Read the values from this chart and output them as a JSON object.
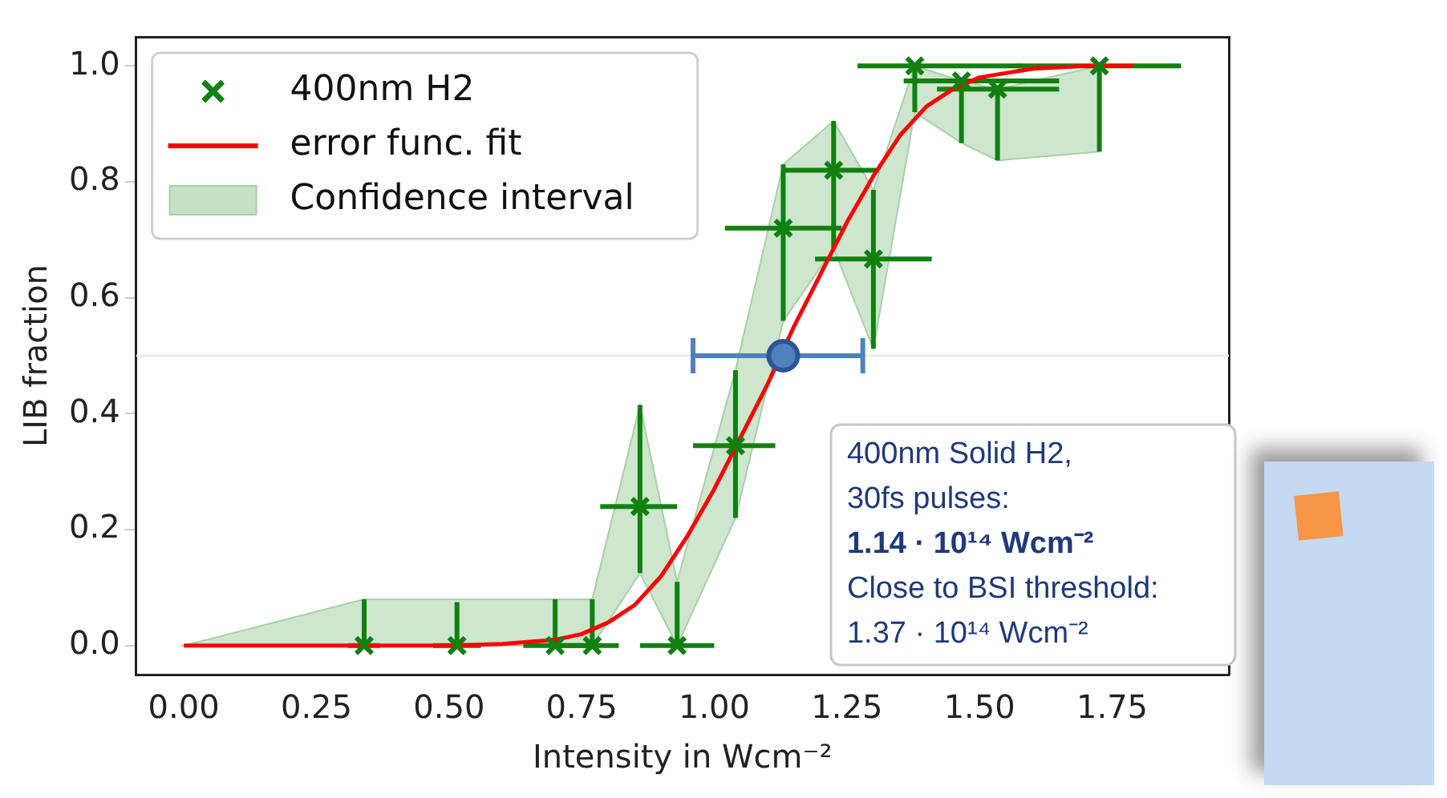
{
  "chart_data": {
    "type": "scatter",
    "xlabel": "Intensity in Wcm⁻²",
    "ylabel": "LIB fraction",
    "xlim": [
      -0.09,
      1.97
    ],
    "xticks": [
      {
        "value": 0,
        "label": "0.00"
      },
      0.25,
      {
        "value": 0.5,
        "label": "0.50"
      },
      0.75,
      {
        "value": 1,
        "label": "1.00"
      },
      1.25,
      {
        "value": 1.5,
        "label": "1.50"
      },
      1.75
    ],
    "ylim": [
      -0.05,
      1.05
    ],
    "yticks": [
      {
        "value": 0,
        "label": "0.0"
      },
      0.2,
      0.4,
      0.6,
      0.8,
      {
        "value": 1,
        "label": "1.0"
      }
    ],
    "grid": false,
    "legend": "top left",
    "ref_lines": [
      {
        "axis": "y",
        "value": 0.5,
        "label": null,
        "color": "#e8ecf2"
      }
    ],
    "annotations": [
      "400nm Solid H2,",
      "30fs pulses:",
      "1.14 · 10¹⁴ Wcm⁻²",
      "Close to BSI threshold:",
      "1.37 · 10¹⁴ Wcm⁻²"
    ],
    "series": [
      {
        "name": "Confidence interval",
        "type": "area",
        "color": "#c4e2c4",
        "x": [
          0,
          0.34,
          0.515,
          0.7,
          0.77,
          0.86,
          0.93,
          1.04,
          1.13,
          1.225,
          1.3,
          1.378,
          1.466,
          1.534,
          1.726
        ],
        "values": [
          null,
          null,
          null,
          null,
          null,
          null,
          null,
          null,
          null,
          null,
          null,
          null,
          null,
          null,
          null
        ],
        "lower": [
          0,
          0,
          0,
          0,
          0,
          0.125,
          0,
          0.22,
          0.56,
          0.685,
          0.512,
          0.92,
          0.867,
          0.837,
          0.852
        ],
        "upper": [
          0,
          0.08,
          0.08,
          0.08,
          0.08,
          0.415,
          0.11,
          0.475,
          0.83,
          0.905,
          0.786,
          1,
          0.974,
          0.96,
          1
        ]
      },
      {
        "name": "error func. fit",
        "type": "line",
        "color": "#ff0000",
        "marker": "none",
        "x": [
          0,
          0.5,
          0.6,
          0.7,
          0.75,
          0.8,
          0.85,
          0.9,
          0.95,
          1,
          1.05,
          1.1,
          1.15,
          1.2,
          1.25,
          1.3,
          1.35,
          1.4,
          1.45,
          1.5,
          1.6,
          1.7,
          1.79
        ],
        "values": [
          0,
          0,
          0.003,
          0.01,
          0.02,
          0.04,
          0.07,
          0.12,
          0.19,
          0.27,
          0.36,
          0.45,
          0.55,
          0.64,
          0.73,
          0.81,
          0.88,
          0.93,
          0.96,
          0.98,
          0.995,
          1,
          1
        ]
      },
      {
        "name": "400nm H2",
        "color": "#118011",
        "marker": "cross",
        "x": [
          0.34,
          0.515,
          0.7,
          0.77,
          0.86,
          0.93,
          1.04,
          1.13,
          1.225,
          1.3,
          1.378,
          1.466,
          1.534,
          1.726
        ],
        "values": [
          0,
          0,
          0,
          0,
          0.24,
          0,
          0.345,
          0.72,
          0.82,
          0.667,
          1,
          0.974,
          0.96,
          1
        ],
        "errors": [
          [
            0,
            0.08
          ],
          [
            0,
            0.075
          ],
          [
            0,
            0.08
          ],
          [
            0,
            0.08
          ],
          [
            0.125,
            0.415
          ],
          [
            0,
            0.11
          ],
          [
            0.22,
            0.475
          ],
          [
            0.56,
            0.83
          ],
          [
            0.685,
            0.905
          ],
          [
            0.512,
            0.786
          ],
          [
            0.92,
            1
          ],
          [
            0.867,
            0.974
          ],
          [
            0.837,
            0.96
          ],
          [
            0.852,
            1
          ]
        ],
        "xerrors": [
          [
            0.31,
            0.37
          ],
          [
            0.47,
            0.56
          ],
          [
            0.64,
            0.76
          ],
          [
            0.71,
            0.82
          ],
          [
            0.785,
            0.93
          ],
          [
            0.86,
            1
          ],
          [
            0.96,
            1.115
          ],
          [
            1.02,
            1.24
          ],
          [
            1.13,
            1.31
          ],
          [
            1.19,
            1.41
          ],
          [
            1.27,
            1.58
          ],
          [
            1.357,
            1.65
          ],
          [
            1.42,
            1.65
          ],
          [
            1.57,
            1.88
          ]
        ]
      },
      {
        "color": "#4f81bd",
        "marker": "circle",
        "x": [
          1.13
        ],
        "values": [
          0.5
        ],
        "xerrors": [
          [
            0.96,
            1.28
          ]
        ]
      }
    ]
  }
}
